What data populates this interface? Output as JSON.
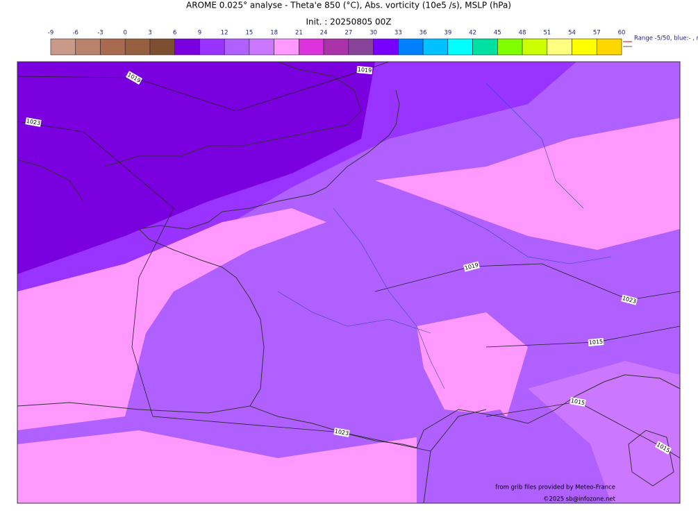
{
  "header": {
    "title": "AROME 0.025° analyse - Theta'e 850 (°C), Abs. vorticity (10e5 /s), MSLP (hPa)",
    "subtitle": "Init. : 20250805 00Z"
  },
  "colorbar": {
    "ticks": [
      -9,
      -6,
      -3,
      0,
      3,
      6,
      9,
      12,
      15,
      18,
      21,
      24,
      27,
      30,
      33,
      36,
      39,
      42,
      45,
      48,
      51,
      54,
      57,
      60
    ],
    "colors": [
      "#c9998a",
      "#b9826a",
      "#a96b50",
      "#966040",
      "#7b4f30",
      "#7b00e0",
      "#9933ff",
      "#b060ff",
      "#cc77ff",
      "#ff99ff",
      "#dd33dd",
      "#aa33aa",
      "#884499",
      "#7700ff",
      "#0080ff",
      "#00c0ff",
      "#00ffff",
      "#00e0a0",
      "#80ff00",
      "#ccff00",
      "#ffff80",
      "#ffff00",
      "#ffd700"
    ]
  },
  "range_note": "Range -5/50, blue:- , r",
  "isobar_labels": [
    "1019",
    "1019",
    "1023",
    "1019",
    "1023",
    "1015",
    "1015",
    "1023",
    "1015"
  ],
  "credits": {
    "source": "from grib files provided by Meteo-France",
    "copyright": "©2025 sb@infozone.net"
  }
}
